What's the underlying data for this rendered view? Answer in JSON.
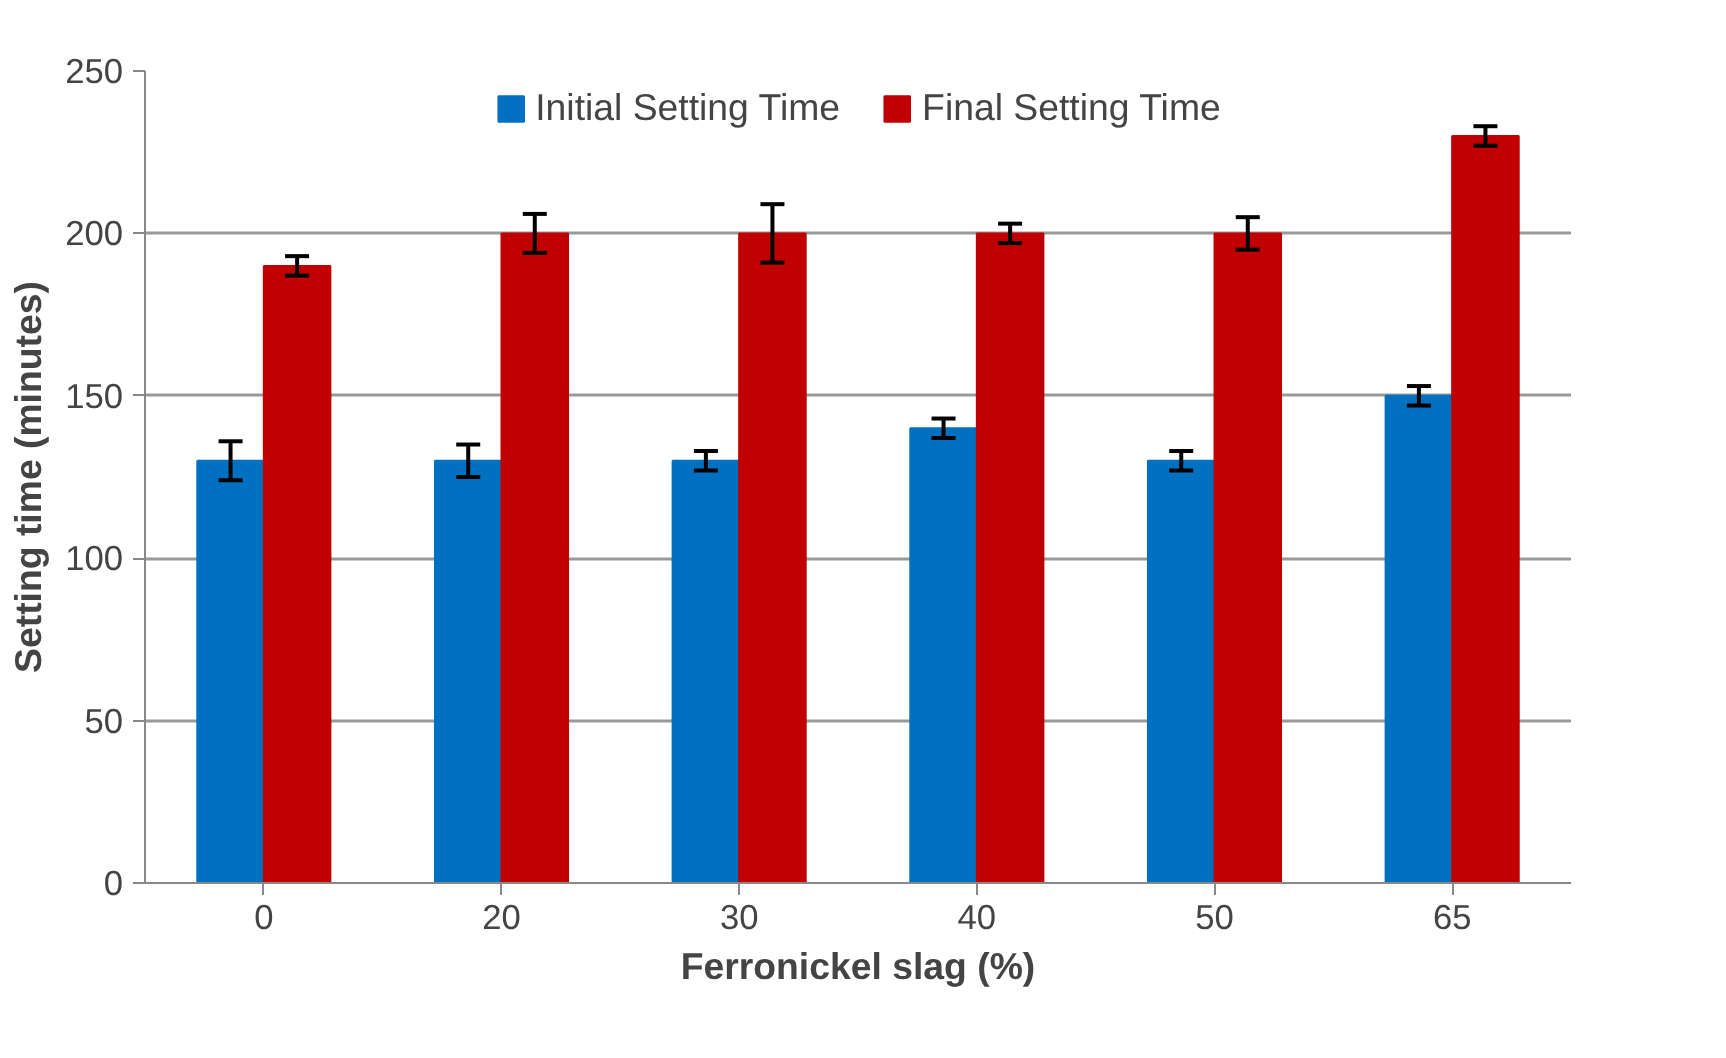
{
  "chart_data": {
    "type": "bar",
    "xlabel": "Ferronickel slag (%)",
    "ylabel": "Setting time (minutes)",
    "categories": [
      "0",
      "20",
      "30",
      "40",
      "50",
      "65"
    ],
    "series": [
      {
        "name": "Initial Setting Time",
        "color": "#0070c0",
        "values": [
          130,
          130,
          130,
          140,
          130,
          150
        ],
        "errors": [
          6,
          5,
          3,
          3,
          3,
          3
        ]
      },
      {
        "name": "Final Setting Time",
        "color": "#c00000",
        "values": [
          190,
          200,
          200,
          200,
          200,
          230
        ],
        "errors": [
          3,
          6,
          9,
          3,
          5,
          3
        ]
      }
    ],
    "ylim": [
      0,
      250
    ],
    "yticks": [
      0,
      50,
      100,
      150,
      200,
      250
    ],
    "grid": "y",
    "legend": "top"
  }
}
